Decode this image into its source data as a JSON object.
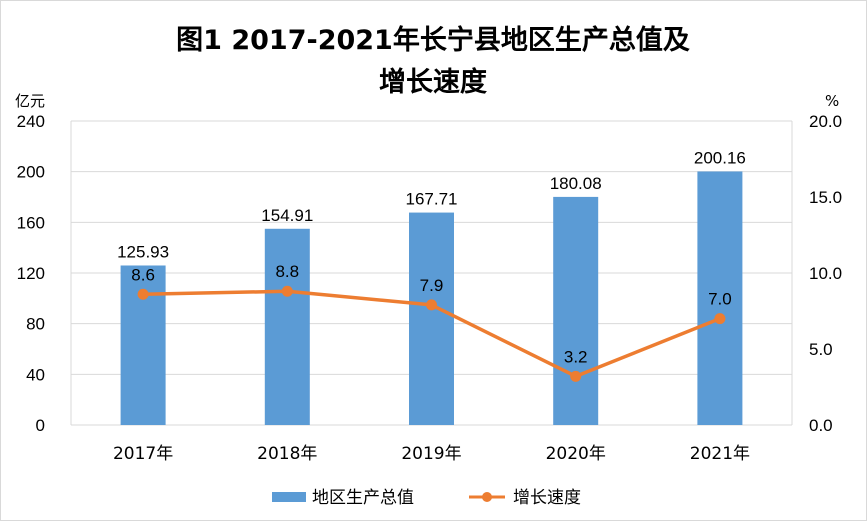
{
  "chart_data": {
    "type": "bar",
    "title_line1": "图1  2017-2021年长宁县地区生产总值及",
    "title_line2": "增长速度",
    "y_left_unit": "亿元",
    "y_right_unit": "%",
    "categories": [
      "2017年",
      "2018年",
      "2019年",
      "2020年",
      "2021年"
    ],
    "y_left": {
      "range": [
        0,
        240
      ],
      "ticks": [
        "0",
        "40",
        "80",
        "120",
        "160",
        "200",
        "240"
      ]
    },
    "y_right": {
      "range": [
        0,
        20
      ],
      "ticks": [
        "0.0",
        "5.0",
        "10.0",
        "15.0",
        "20.0"
      ]
    },
    "grid": true,
    "legend_position": "bottom",
    "series": [
      {
        "name": "地区生产总值",
        "type": "bar",
        "axis": "left",
        "color": "#5b9bd5",
        "values": [
          125.93,
          154.91,
          167.71,
          180.08,
          200.16
        ],
        "labels": [
          "125.93",
          "154.91",
          "167.71",
          "180.08",
          "200.16"
        ]
      },
      {
        "name": "增长速度",
        "type": "line",
        "axis": "right",
        "color": "#ed7d31",
        "values": [
          8.6,
          8.8,
          7.9,
          3.2,
          7.0
        ],
        "labels": [
          "8.6",
          "8.8",
          "7.9",
          "3.2",
          "7.0"
        ]
      }
    ]
  }
}
